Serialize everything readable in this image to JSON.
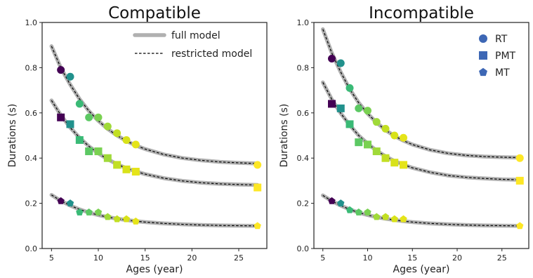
{
  "chart_data": [
    {
      "type": "scatter",
      "title": "Compatible",
      "xlabel": "Ages (year)",
      "ylabel": "Durations (s)",
      "xlim": [
        4,
        28
      ],
      "ylim": [
        0.0,
        1.0
      ],
      "xticks": [
        "5",
        "10",
        "15",
        "20",
        "25"
      ],
      "yticks": [
        "0.0",
        "0.2",
        "0.4",
        "0.6",
        "0.8",
        "1.0"
      ],
      "grid": false,
      "legend": {
        "position": "top-right",
        "entries": [
          {
            "label": "full model",
            "style": "thick-gray-line"
          },
          {
            "label": "restricted model",
            "style": "black-dashed-line"
          }
        ]
      },
      "x": [
        6,
        7,
        8,
        9,
        10,
        11,
        12,
        13,
        14,
        27
      ],
      "series": [
        {
          "name": "RT",
          "marker": "circle",
          "values": [
            0.79,
            0.76,
            0.64,
            0.58,
            0.58,
            0.54,
            0.51,
            0.48,
            0.46,
            0.37
          ]
        },
        {
          "name": "PMT",
          "marker": "square",
          "values": [
            0.58,
            0.55,
            0.48,
            0.43,
            0.43,
            0.4,
            0.37,
            0.35,
            0.34,
            0.27
          ]
        },
        {
          "name": "MT",
          "marker": "pentagon",
          "values": [
            0.21,
            0.2,
            0.16,
            0.16,
            0.16,
            0.14,
            0.13,
            0.13,
            0.12,
            0.1
          ]
        }
      ],
      "fits": [
        {
          "series": "RT",
          "x": [
            5,
            6,
            7,
            8,
            9,
            10,
            11,
            12,
            13,
            14,
            15,
            17,
            19,
            21,
            23,
            25,
            27
          ],
          "y": [
            0.895,
            0.799,
            0.725,
            0.661,
            0.608,
            0.565,
            0.529,
            0.5,
            0.476,
            0.456,
            0.44,
            0.416,
            0.4,
            0.39,
            0.383,
            0.379,
            0.376
          ]
        },
        {
          "series": "PMT",
          "x": [
            5,
            6,
            7,
            8,
            9,
            10,
            11,
            12,
            13,
            14,
            15,
            17,
            19,
            21,
            23,
            25,
            27
          ],
          "y": [
            0.655,
            0.59,
            0.535,
            0.49,
            0.452,
            0.421,
            0.395,
            0.373,
            0.355,
            0.341,
            0.329,
            0.311,
            0.299,
            0.291,
            0.286,
            0.283,
            0.281
          ]
        },
        {
          "series": "MT",
          "x": [
            5,
            6,
            7,
            8,
            9,
            10,
            11,
            12,
            13,
            14,
            15,
            17,
            19,
            21,
            23,
            25,
            27
          ],
          "y": [
            0.237,
            0.211,
            0.19,
            0.173,
            0.159,
            0.148,
            0.139,
            0.132,
            0.126,
            0.121,
            0.117,
            0.111,
            0.107,
            0.104,
            0.102,
            0.101,
            0.1
          ]
        }
      ]
    },
    {
      "type": "scatter",
      "title": "Incompatible",
      "xlabel": "Ages (year)",
      "ylabel": "Durations (s)",
      "xlim": [
        4,
        28
      ],
      "ylim": [
        0.0,
        1.0
      ],
      "xticks": [
        "5",
        "10",
        "15",
        "20",
        "25"
      ],
      "yticks": [
        "0.0",
        "0.2",
        "0.4",
        "0.6",
        "0.8",
        "1.0"
      ],
      "grid": false,
      "legend": {
        "position": "top-right",
        "entries": [
          {
            "label": "RT",
            "marker": "circle"
          },
          {
            "label": "PMT",
            "marker": "square"
          },
          {
            "label": "MT",
            "marker": "pentagon"
          }
        ]
      },
      "x": [
        6,
        7,
        8,
        9,
        10,
        11,
        12,
        13,
        14,
        27
      ],
      "series": [
        {
          "name": "RT",
          "marker": "circle",
          "values": [
            0.84,
            0.82,
            0.71,
            0.62,
            0.61,
            0.56,
            0.53,
            0.5,
            0.49,
            0.4
          ]
        },
        {
          "name": "PMT",
          "marker": "square",
          "values": [
            0.64,
            0.62,
            0.55,
            0.47,
            0.46,
            0.43,
            0.4,
            0.38,
            0.37,
            0.3
          ]
        },
        {
          "name": "MT",
          "marker": "pentagon",
          "values": [
            0.21,
            0.2,
            0.17,
            0.16,
            0.16,
            0.14,
            0.14,
            0.13,
            0.13,
            0.1
          ]
        }
      ],
      "fits": [
        {
          "series": "RT",
          "x": [
            5,
            6,
            7,
            8,
            9,
            10,
            11,
            12,
            13,
            14,
            15,
            17,
            19,
            21,
            23,
            25,
            27
          ],
          "y": [
            0.97,
            0.865,
            0.78,
            0.705,
            0.645,
            0.597,
            0.557,
            0.524,
            0.498,
            0.477,
            0.46,
            0.436,
            0.421,
            0.412,
            0.407,
            0.404,
            0.402
          ]
        },
        {
          "series": "PMT",
          "x": [
            5,
            6,
            7,
            8,
            9,
            10,
            11,
            12,
            13,
            14,
            15,
            17,
            19,
            21,
            23,
            25,
            27
          ],
          "y": [
            0.735,
            0.66,
            0.598,
            0.546,
            0.5,
            0.464,
            0.433,
            0.408,
            0.387,
            0.371,
            0.357,
            0.337,
            0.323,
            0.315,
            0.31,
            0.306,
            0.304
          ]
        },
        {
          "series": "MT",
          "x": [
            5,
            6,
            7,
            8,
            9,
            10,
            11,
            12,
            13,
            14,
            15,
            17,
            19,
            21,
            23,
            25,
            27
          ],
          "y": [
            0.235,
            0.21,
            0.19,
            0.173,
            0.159,
            0.148,
            0.139,
            0.132,
            0.126,
            0.121,
            0.117,
            0.111,
            0.107,
            0.104,
            0.102,
            0.101,
            0.1
          ]
        }
      ]
    }
  ],
  "age_colors": [
    "#440154",
    "#21918c",
    "#3aba76",
    "#5cc863",
    "#7ad151",
    "#a0da39",
    "#c2df23",
    "#d8e219",
    "#e5e419",
    "#fde725"
  ],
  "colors": {
    "full_model": "#b0b0b0",
    "restricted_model": "#000000",
    "legend_marker": "#3d67b5",
    "axis": "#222222"
  }
}
